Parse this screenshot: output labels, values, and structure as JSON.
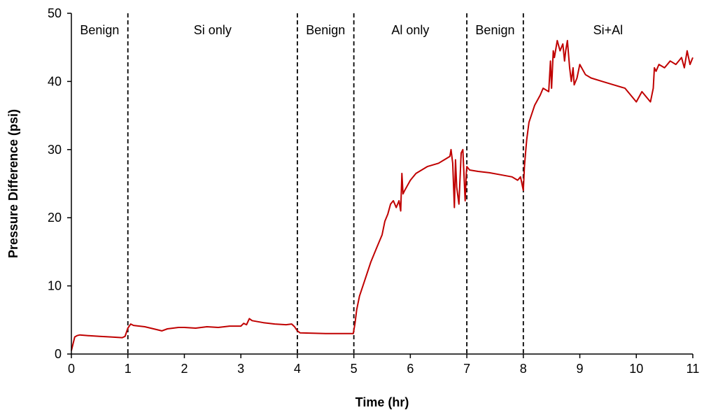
{
  "chart_data": {
    "type": "line",
    "xlabel": "Time (hr)",
    "ylabel": "Pressure Difference (psi)",
    "xlim": [
      0,
      11
    ],
    "ylim": [
      0,
      50
    ],
    "x_ticks": [
      0,
      1,
      2,
      3,
      4,
      5,
      6,
      7,
      8,
      9,
      10,
      11
    ],
    "y_ticks": [
      0,
      10,
      20,
      30,
      40,
      50
    ],
    "grid": false,
    "line_color": "#C00000",
    "phase_boundaries": [
      1,
      4,
      5,
      7,
      8
    ],
    "phases": [
      {
        "label": "Benign",
        "x": 0.5
      },
      {
        "label": "Si only",
        "x": 2.5
      },
      {
        "label": "Benign",
        "x": 4.5
      },
      {
        "label": "Al only",
        "x": 6.0
      },
      {
        "label": "Benign",
        "x": 7.5
      },
      {
        "label": "Si+Al",
        "x": 9.5
      }
    ],
    "series": [
      {
        "x": [
          0.0,
          0.03,
          0.06,
          0.1,
          0.15,
          0.3,
          0.5,
          0.7,
          0.9,
          0.95,
          1.0,
          1.05,
          1.1,
          1.3,
          1.5,
          1.6,
          1.7,
          1.8,
          1.9,
          2.0,
          2.2,
          2.4,
          2.6,
          2.8,
          3.0,
          3.05,
          3.1,
          3.15,
          3.2,
          3.4,
          3.6,
          3.8,
          3.9,
          3.95,
          4.0,
          4.05,
          4.5,
          4.99,
          5.02,
          5.05,
          5.1,
          5.2,
          5.3,
          5.4,
          5.5,
          5.55,
          5.6,
          5.65,
          5.7,
          5.75,
          5.8,
          5.83,
          5.85,
          5.87,
          5.9,
          6.0,
          6.1,
          6.2,
          6.3,
          6.5,
          6.7,
          6.72,
          6.75,
          6.78,
          6.8,
          6.82,
          6.86,
          6.9,
          6.93,
          6.97,
          6.99,
          7.0,
          7.05,
          7.2,
          7.4,
          7.6,
          7.8,
          7.9,
          7.95,
          8.0,
          8.02,
          8.04,
          8.06,
          8.1,
          8.2,
          8.3,
          8.35,
          8.45,
          8.48,
          8.5,
          8.53,
          8.55,
          8.6,
          8.65,
          8.7,
          8.73,
          8.75,
          8.78,
          8.8,
          8.82,
          8.85,
          8.88,
          8.9,
          8.95,
          9.0,
          9.1,
          9.2,
          9.4,
          9.6,
          9.8,
          9.9,
          10.0,
          10.1,
          10.2,
          10.25,
          10.3,
          10.32,
          10.35,
          10.4,
          10.5,
          10.6,
          10.7,
          10.8,
          10.85,
          10.9,
          10.95,
          11.0
        ],
        "y": [
          0.5,
          1.5,
          2.5,
          2.7,
          2.8,
          2.7,
          2.6,
          2.5,
          2.4,
          2.6,
          3.8,
          4.4,
          4.2,
          4.0,
          3.6,
          3.4,
          3.7,
          3.8,
          3.9,
          3.9,
          3.8,
          4.0,
          3.9,
          4.1,
          4.1,
          4.5,
          4.3,
          5.2,
          4.9,
          4.6,
          4.4,
          4.3,
          4.4,
          4.0,
          3.4,
          3.1,
          3.0,
          3.0,
          4.5,
          6.5,
          8.5,
          11.0,
          13.5,
          15.5,
          17.5,
          19.5,
          20.5,
          22.0,
          22.5,
          21.5,
          22.5,
          21.0,
          26.5,
          23.5,
          24.0,
          25.5,
          26.5,
          27.0,
          27.5,
          28.0,
          29.0,
          30.0,
          28.0,
          21.5,
          28.5,
          24.5,
          22.0,
          29.5,
          30.0,
          22.5,
          26.5,
          27.5,
          27.0,
          26.8,
          26.6,
          26.3,
          26.0,
          25.5,
          26.0,
          24.0,
          27.5,
          29.5,
          31.5,
          34.0,
          36.5,
          38.0,
          39.0,
          38.5,
          43.0,
          39.0,
          44.5,
          43.5,
          46.0,
          44.5,
          45.5,
          43.0,
          44.5,
          46.0,
          44.0,
          42.0,
          40.0,
          42.0,
          39.5,
          40.5,
          42.5,
          41.0,
          40.5,
          40.0,
          39.5,
          39.0,
          38.0,
          37.0,
          38.5,
          37.5,
          37.0,
          39.0,
          42.0,
          41.5,
          42.5,
          42.0,
          43.0,
          42.5,
          43.5,
          42.0,
          44.5,
          42.5,
          43.5
        ]
      }
    ]
  }
}
